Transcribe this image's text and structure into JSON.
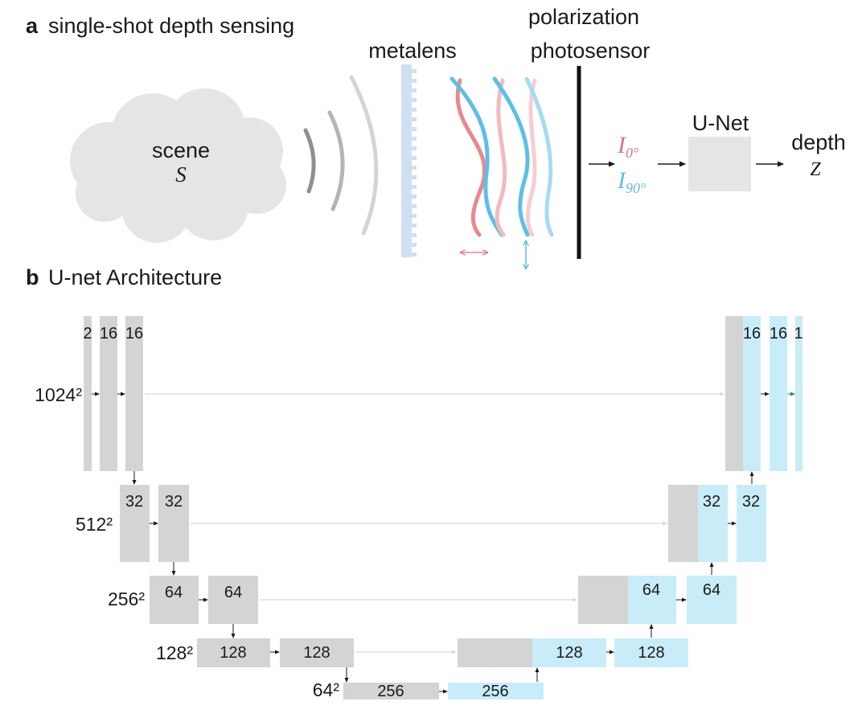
{
  "panel_a": {
    "letter": "a",
    "title": "single-shot depth sensing",
    "scene_label": "scene",
    "scene_symbol": "S",
    "metalens_label": "metalens",
    "sensor_label_1": "polarization",
    "sensor_label_2": "photosensor",
    "i0_base": "I",
    "i0_sub": "0°",
    "i90_base": "I",
    "i90_sub": "90°",
    "unet_label": "U-Net",
    "depth_label": "depth",
    "depth_symbol": "Z",
    "colors": {
      "red": "#e8888f",
      "red_light": "#f3b9bf",
      "blue": "#5dbfe6",
      "blue_light": "#a6dbf2",
      "gray": "#e5e5e5"
    }
  },
  "panel_b": {
    "letter": "b",
    "title": "U-net Architecture",
    "levels": [
      {
        "resolution": "1024²",
        "encoder_channels": [
          "2",
          "16",
          "16"
        ],
        "decoder_channels": [
          "16",
          "16",
          "1"
        ]
      },
      {
        "resolution": "512²",
        "encoder_channels": [
          "32",
          "32"
        ],
        "decoder_channels": [
          "32",
          "32"
        ]
      },
      {
        "resolution": "256²",
        "encoder_channels": [
          "64",
          "64"
        ],
        "decoder_channels": [
          "64",
          "64"
        ]
      },
      {
        "resolution": "128²",
        "encoder_channels": [
          "128",
          "128"
        ],
        "decoder_channels": [
          "128",
          "128"
        ]
      },
      {
        "resolution": "64²",
        "encoder_channels": [
          "256"
        ],
        "decoder_channels": [
          "256"
        ]
      }
    ],
    "colors": {
      "encoder": "#d4d4d4",
      "decoder": "#c9ecf9",
      "skip": "#dadada",
      "output_arrow": "#1a9a4a"
    }
  }
}
